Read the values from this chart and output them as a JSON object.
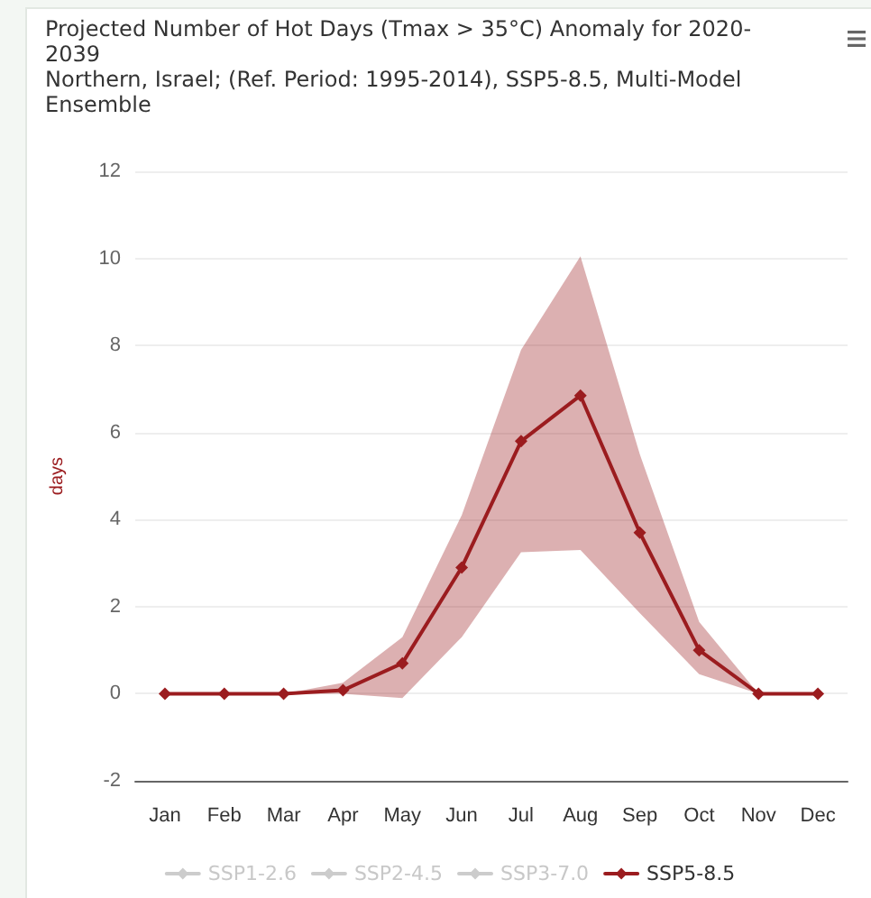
{
  "chart_data": {
    "type": "line",
    "title": "Projected Number of Hot Days (Tmax > 35°C) Anomaly for 2020-2039",
    "subtitle": "Northern, Israel; (Ref. Period: 1995-2014), SSP5-8.5, Multi-Model Ensemble",
    "ylabel": "days",
    "categories": [
      "Jan",
      "Feb",
      "Mar",
      "Apr",
      "May",
      "Jun",
      "Jul",
      "Aug",
      "Sep",
      "Oct",
      "Nov",
      "Dec"
    ],
    "series": [
      {
        "name": "SSP1-2.6",
        "color": "#cccccc",
        "values": [
          null,
          null,
          null,
          null,
          null,
          null,
          null,
          null,
          null,
          null,
          null,
          null
        ]
      },
      {
        "name": "SSP2-4.5",
        "color": "#cccccc",
        "values": [
          null,
          null,
          null,
          null,
          null,
          null,
          null,
          null,
          null,
          null,
          null,
          null
        ]
      },
      {
        "name": "SSP3-7.0",
        "color": "#cccccc",
        "values": [
          null,
          null,
          null,
          null,
          null,
          null,
          null,
          null,
          null,
          null,
          null,
          null
        ]
      },
      {
        "name": "SSP5-8.5",
        "color": "#9b1c1f",
        "values": [
          0,
          0,
          0,
          0.08,
          0.7,
          2.9,
          5.8,
          6.85,
          3.7,
          1,
          0,
          0
        ],
        "lower": [
          0,
          0,
          0,
          0,
          -0.1,
          1.3,
          3.25,
          3.3,
          1.85,
          0.45,
          0,
          0
        ],
        "upper": [
          0,
          0,
          0,
          0.25,
          1.3,
          4.1,
          7.9,
          10.05,
          5.5,
          1.65,
          0,
          0
        ]
      }
    ],
    "ylim": [
      -2,
      12
    ],
    "yticks": [
      -2,
      0,
      2,
      4,
      6,
      8,
      10,
      12
    ],
    "grid": "y",
    "legend": "bottom",
    "marker": "diamond",
    "line_style": "solid"
  }
}
